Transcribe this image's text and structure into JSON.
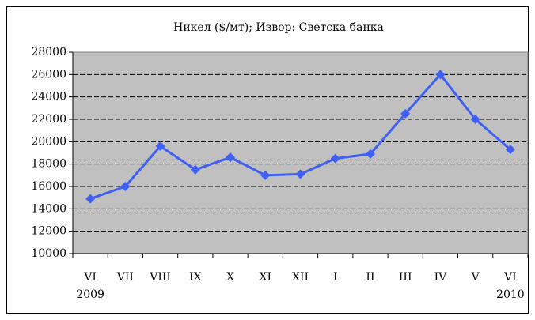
{
  "chart_data": {
    "type": "line",
    "title": "Никел ($/мт); Извор: Светска банка",
    "categories": [
      "VI",
      "VII",
      "VIII",
      "IX",
      "X",
      "XI",
      "XII",
      "I",
      "II",
      "III",
      "IV",
      "V",
      "VI"
    ],
    "category_years": [
      "2009",
      null,
      null,
      null,
      null,
      null,
      null,
      null,
      null,
      null,
      null,
      null,
      "2010"
    ],
    "series": [
      {
        "name": "Никел",
        "color": "#3f5ff5",
        "values": [
          14900,
          16000,
          19600,
          17500,
          18600,
          17000,
          17100,
          18500,
          18900,
          22500,
          26000,
          22000,
          19300
        ]
      }
    ],
    "ylim": [
      10000,
      28000
    ],
    "yticks": [
      10000,
      12000,
      14000,
      16000,
      18000,
      20000,
      22000,
      24000,
      26000,
      28000
    ],
    "grid": true
  }
}
